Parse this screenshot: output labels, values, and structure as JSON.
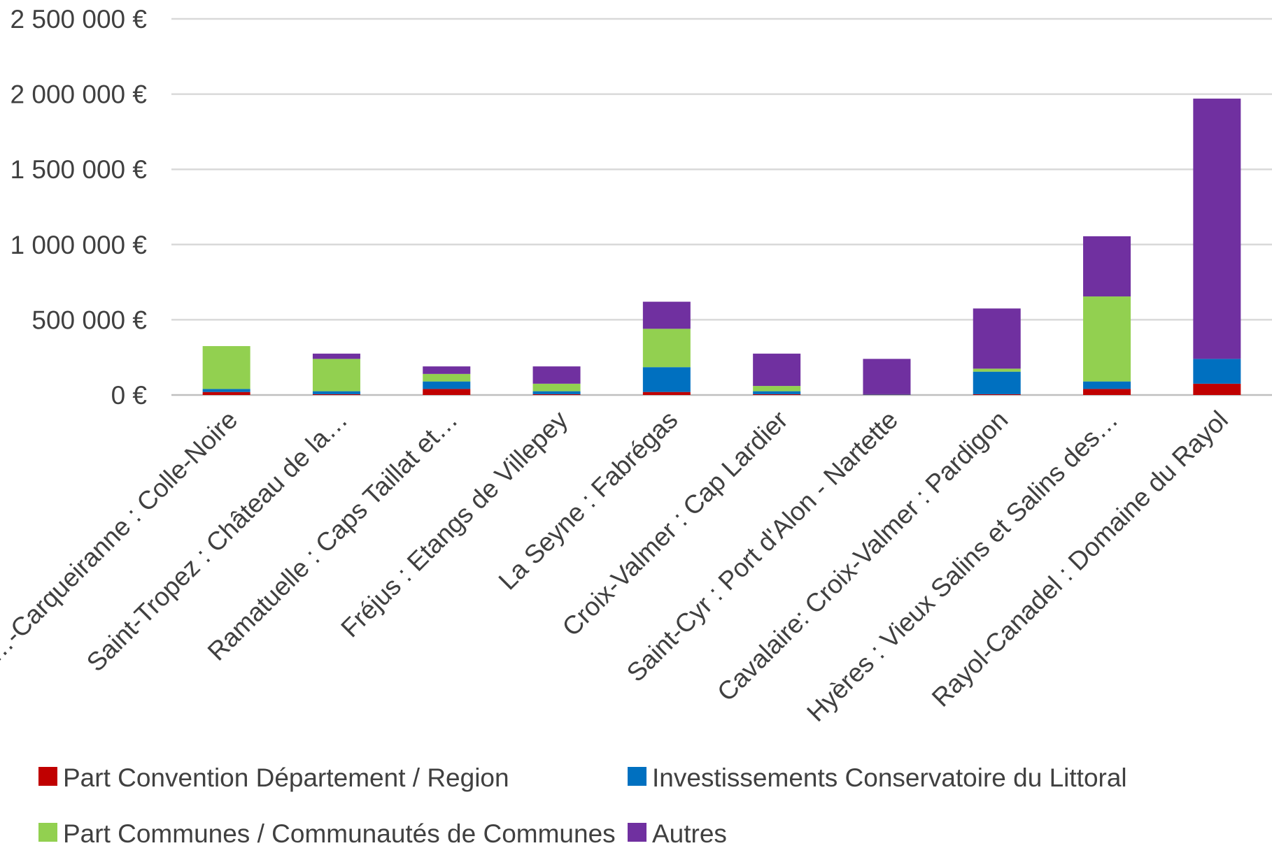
{
  "chart_data": {
    "type": "bar",
    "stacked": true,
    "title": "",
    "xlabel": "",
    "ylabel": "",
    "ylim": [
      0,
      2500000
    ],
    "yticks": [
      0,
      500000,
      1000000,
      1500000,
      2000000,
      2500000
    ],
    "ytick_labels": [
      "0 €",
      "500 000 €",
      "1 000 000 €",
      "1 500 000 €",
      "2 000 000 €",
      "2 500 000 €"
    ],
    "grid": true,
    "legend_position": "bottom",
    "categories": [
      "…-Carqueiranne : Colle-Noire",
      "Saint-Tropez : Château de la…",
      "Ramatuelle : Caps Taillat et…",
      "Fréjus : Etangs de Villepey",
      "La Seyne : Fabrégas",
      "Croix-Valmer : Cap Lardier",
      "Saint-Cyr : Port d'Alon - Nartette",
      "Cavalaire: Croix-Valmer : Pardigon",
      "Hyères : Vieux Salins et Salins des…",
      "Rayol-Canadel : Domaine du Rayol"
    ],
    "series": [
      {
        "name": "Part Convention Département  /  Region",
        "color": "#C00000",
        "values": [
          20000,
          5000,
          40000,
          5000,
          20000,
          5000,
          2000,
          5000,
          40000,
          75000
        ]
      },
      {
        "name": "Investissements Conservatoire du Littoral",
        "color": "#0070C0",
        "values": [
          20000,
          20000,
          50000,
          20000,
          165000,
          20000,
          3000,
          150000,
          50000,
          165000
        ]
      },
      {
        "name": "Part Communes / Communautés de Communes",
        "color": "#92D050",
        "values": [
          285000,
          215000,
          50000,
          50000,
          255000,
          35000,
          0,
          20000,
          565000,
          0
        ]
      },
      {
        "name": "Autres",
        "color": "#7030A0",
        "values": [
          0,
          35000,
          50000,
          115000,
          180000,
          215000,
          235000,
          400000,
          400000,
          1730000
        ]
      }
    ]
  }
}
